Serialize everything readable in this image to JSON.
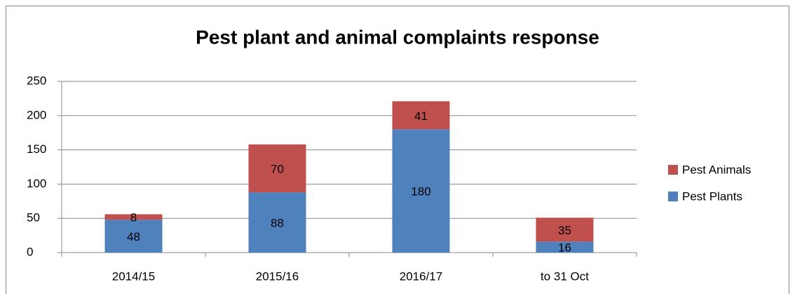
{
  "chart_data": {
    "type": "stacked_bar",
    "title": "Pest plant and animal complaints response",
    "categories": [
      "2014/15",
      "2015/16",
      "2016/17",
      "to 31 Oct"
    ],
    "series": [
      {
        "name": "Pest Plants",
        "color": "#4f81bd",
        "values": [
          48,
          88,
          180,
          16
        ]
      },
      {
        "name": "Pest Animals",
        "color": "#c0504d",
        "values": [
          8,
          70,
          41,
          35
        ]
      }
    ],
    "ylim": [
      0,
      250
    ],
    "yticks": [
      0,
      50,
      100,
      150,
      200,
      250
    ],
    "grid": true,
    "legend": "right"
  }
}
